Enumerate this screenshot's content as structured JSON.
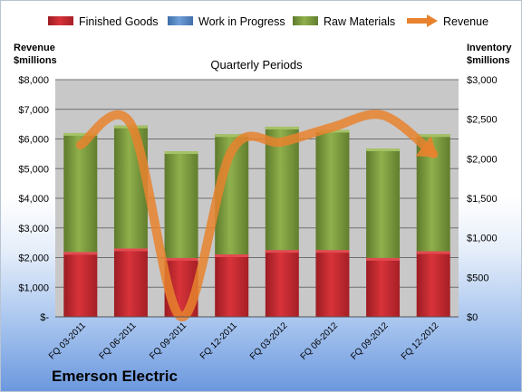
{
  "chart_data": {
    "type": "bar",
    "stacked": true,
    "title": "Quarterly Periods",
    "categories": [
      "FQ 03-2011",
      "FQ 06-2011",
      "FQ 09-2011",
      "FQ 12-2011",
      "FQ 03-2012",
      "FQ 06-2012",
      "FQ 09-2012",
      "FQ 12-2012"
    ],
    "series": [
      {
        "name": "Finished Goods",
        "axis": "right",
        "color": "#c0272d",
        "values": [
          820,
          865,
          745,
          790,
          845,
          845,
          745,
          830
        ]
      },
      {
        "name": "Work in Progress",
        "axis": "right",
        "color": "#4f81bd",
        "values": [
          0,
          0,
          0,
          0,
          0,
          0,
          0,
          0
        ]
      },
      {
        "name": "Raw Materials",
        "axis": "right",
        "color": "#77933c",
        "values": [
          1505,
          1555,
          1350,
          1520,
          1560,
          1520,
          1385,
          1480
        ]
      },
      {
        "name": "Revenue",
        "type": "line",
        "axis": "left",
        "color": "#e8822e",
        "values": [
          5800,
          6500,
          0,
          5600,
          5900,
          6400,
          6800,
          5500
        ]
      }
    ],
    "left_axis": {
      "label": "Revenue\n$millions",
      "range": [
        0,
        8000
      ],
      "ticks": [
        "$-",
        "$1,000",
        "$2,000",
        "$3,000",
        "$4,000",
        "$5,000",
        "$6,000",
        "$7,000",
        "$8,000"
      ]
    },
    "right_axis": {
      "label": "Inventory\n$millions",
      "range": [
        0,
        3000
      ],
      "ticks": [
        "$0",
        "$500",
        "$1,000",
        "$1,500",
        "$2,000",
        "$2,500",
        "$3,000"
      ]
    },
    "grid": true,
    "legend_position": "top"
  },
  "company": "Emerson Electric",
  "colors": {
    "plot_background": "#c8c8c8",
    "gridline": "#6f6f6f"
  }
}
